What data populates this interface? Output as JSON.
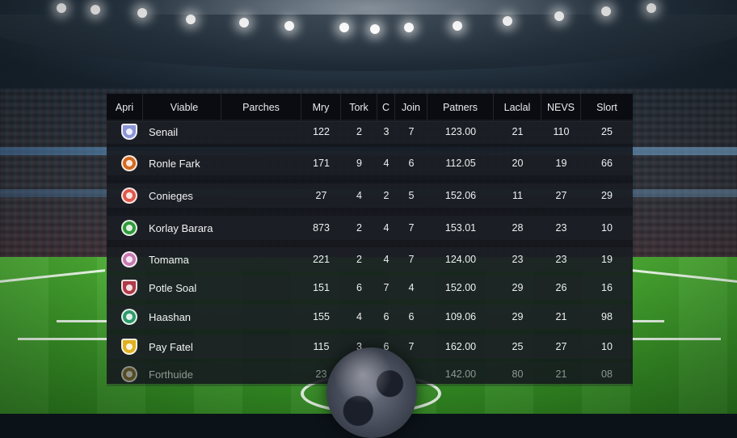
{
  "table": {
    "columns": [
      "Apri",
      "Viable",
      "Parches",
      "Mry",
      "Tork",
      "C",
      "Join",
      "Patners",
      "Laclal",
      "NEVS",
      "Slort"
    ],
    "rows": [
      {
        "club": "Senail",
        "crest": "shield",
        "color": "#8a96d6",
        "cols": [
          "",
          "122",
          "2",
          "3",
          "7",
          "123.00",
          "21",
          "110",
          "25"
        ]
      },
      {
        "club": "Ronle Fark",
        "crest": "round",
        "color": "#d2691e",
        "cols": [
          "",
          "171",
          "9",
          "4",
          "6",
          "112.05",
          "20",
          "19",
          "66"
        ]
      },
      {
        "club": "Conieges",
        "crest": "round",
        "color": "#e0584a",
        "cols": [
          "",
          "27",
          "4",
          "2",
          "5",
          "152.06",
          "11",
          "27",
          "29"
        ]
      },
      {
        "club": "Korlay Barara",
        "crest": "round",
        "color": "#2f9a3a",
        "cols": [
          "",
          "873",
          "2",
          "4",
          "7",
          "153.01",
          "28",
          "23",
          "10"
        ]
      },
      {
        "club": "Tomama",
        "crest": "round",
        "color": "#c77ab0",
        "cols": [
          "",
          "221",
          "2",
          "4",
          "7",
          "124.00",
          "23",
          "23",
          "19"
        ]
      },
      {
        "club": "Potle Soal",
        "crest": "shield",
        "color": "#b03a48",
        "cols": [
          "",
          "151",
          "6",
          "7",
          "4",
          "152.00",
          "29",
          "26",
          "16"
        ]
      },
      {
        "club": "Haashan",
        "crest": "round",
        "color": "#2f9a6a",
        "cols": [
          "",
          "155",
          "4",
          "6",
          "6",
          "109.06",
          "29",
          "21",
          "98"
        ]
      },
      {
        "club": "Pay Fatel",
        "crest": "shield",
        "color": "#e0b020",
        "cols": [
          "",
          "115",
          "3",
          "6",
          "7",
          "162.00",
          "25",
          "27",
          "10"
        ]
      },
      {
        "club": "Forthuide",
        "crest": "round",
        "color": "#8a6a2a",
        "cols": [
          "",
          "23",
          "",
          "",
          "",
          "142.00",
          "80",
          "21",
          "08"
        ]
      }
    ]
  }
}
